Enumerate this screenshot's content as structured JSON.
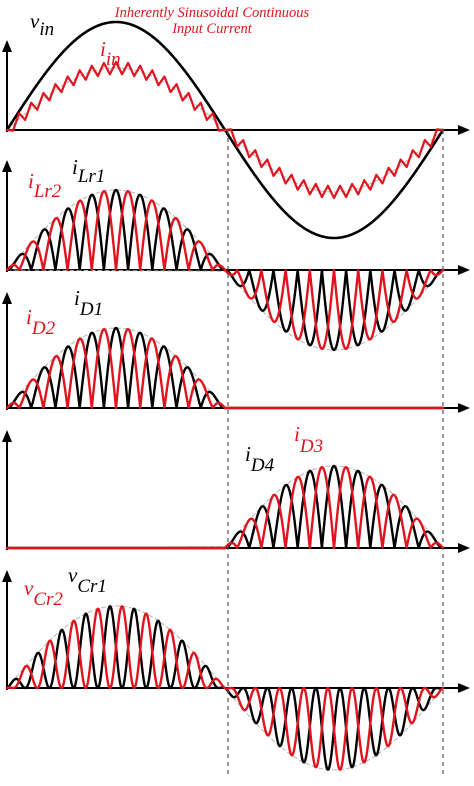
{
  "annotation": {
    "line1": "Inherently Sinusoidal Continuous",
    "line2": "Input Current"
  },
  "labels": {
    "vin": {
      "main": "v",
      "sub": "in"
    },
    "iin": {
      "main": "i",
      "sub": "in"
    },
    "iLr1": {
      "main": "i",
      "sub": "Lr1"
    },
    "iLr2": {
      "main": "i",
      "sub": "Lr2"
    },
    "iD1": {
      "main": "i",
      "sub": "D1"
    },
    "iD2": {
      "main": "i",
      "sub": "D2"
    },
    "iD3": {
      "main": "i",
      "sub": "D3"
    },
    "iD4": {
      "main": "i",
      "sub": "D4"
    },
    "vCr1": {
      "main": "v",
      "sub": "Cr1"
    },
    "vCr2": {
      "main": "v",
      "sub": "Cr2"
    }
  },
  "colors": {
    "black_trace": "#000000",
    "red_trace": "#e0141e",
    "envelope": "#b4b4b4",
    "axis": "#000000",
    "divider": "#555555"
  }
}
